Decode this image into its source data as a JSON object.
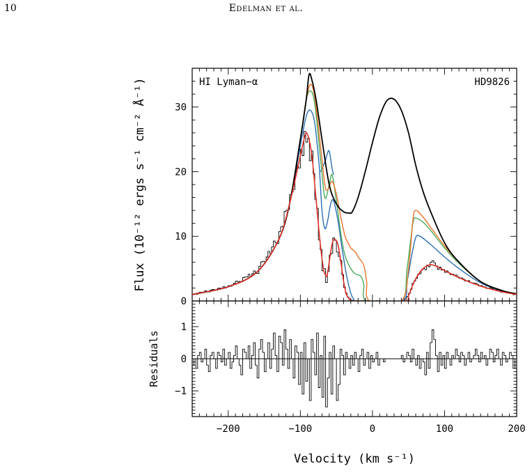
{
  "header": {
    "page_number": "10",
    "running_head": "Edelman et al."
  },
  "chart_data": [
    {
      "panel": "flux",
      "type": "line",
      "xlim": [
        -250,
        200
      ],
      "ylim": [
        0,
        36
      ],
      "x_ticks": [
        -200,
        -100,
        0,
        100,
        200
      ],
      "y_ticks": [
        0,
        10,
        20,
        30
      ],
      "y_tick_labels": [
        "0",
        "10",
        "20",
        "30"
      ],
      "ylabel": "Flux (10⁻¹² ergs s⁻¹ cm⁻² Å⁻¹)",
      "annotations": {
        "left": "HI Lyman−α",
        "right": "HD9826"
      },
      "colors": {
        "intrinsic": "#000000",
        "model_a": "#e8742a",
        "model_b": "#4aaa5a",
        "model_c": "#2a6fb5",
        "best_fit": "#e0322a",
        "data": "#000000"
      },
      "series": [
        {
          "key": "intrinsic",
          "x": [
            -250,
            -200,
            -160,
            -130,
            -115,
            -100,
            -92,
            -88,
            -84,
            -78,
            -70,
            -60,
            -50,
            -40,
            -32,
            -28,
            -20,
            -10,
            0,
            10,
            20,
            30,
            40,
            50,
            60,
            70,
            80,
            100,
            120,
            150,
            180,
            200
          ],
          "values": [
            1.0,
            2.2,
            4.5,
            9.5,
            15,
            25,
            31,
            35,
            34.2,
            31,
            25,
            18,
            15,
            13.8,
            13.6,
            13.8,
            16,
            20,
            24.5,
            28.5,
            31,
            31.2,
            29.5,
            26,
            21,
            17,
            14,
            9,
            6,
            3,
            1.6,
            1.1
          ]
        },
        {
          "key": "model_a",
          "x": [
            -250,
            -200,
            -160,
            -130,
            -115,
            -100,
            -92,
            -86,
            -80,
            -72,
            -66,
            -62,
            -56,
            -50,
            -44,
            -38,
            -34,
            -30,
            -26,
            -22,
            -20,
            -12,
            -8,
            -4,
            40,
            50,
            56,
            60,
            70,
            80,
            100,
            120,
            150,
            180,
            200
          ],
          "values": [
            1.0,
            2.2,
            4.5,
            9.5,
            15,
            25,
            31,
            33.5,
            31.5,
            24,
            18,
            17.2,
            18.5,
            16.5,
            13,
            10,
            9.0,
            8.2,
            7.8,
            7.3,
            6.8,
            5.5,
            3.0,
            0,
            0,
            5,
            12.5,
            14,
            13,
            11.5,
            8.5,
            6,
            3,
            1.6,
            1.1
          ]
        },
        {
          "key": "model_b",
          "x": [
            -250,
            -200,
            -160,
            -130,
            -115,
            -100,
            -92,
            -86,
            -80,
            -72,
            -66,
            -60,
            -56,
            -50,
            -44,
            -38,
            -30,
            -24,
            -16,
            -12,
            -8,
            40,
            48,
            56,
            60,
            70,
            80,
            100,
            120,
            150,
            180,
            200
          ],
          "values": [
            1.0,
            2.2,
            4.5,
            9.5,
            15,
            25,
            31,
            32.5,
            30.5,
            22,
            16,
            18,
            19.5,
            15.5,
            10.5,
            7,
            5,
            4.2,
            3.8,
            2.5,
            0,
            0,
            5,
            12,
            12.8,
            12.2,
            11,
            8.2,
            5.8,
            3,
            1.6,
            1.1
          ]
        },
        {
          "key": "model_c",
          "x": [
            -250,
            -200,
            -160,
            -130,
            -115,
            -100,
            -92,
            -86,
            -80,
            -74,
            -70,
            -66,
            -62,
            -58,
            -54,
            -48,
            -42,
            -36,
            -30,
            -26,
            -22,
            40,
            48,
            54,
            60,
            66,
            80,
            100,
            120,
            150,
            180,
            200
          ],
          "values": [
            1.0,
            2.2,
            4.5,
            9.5,
            15,
            24,
            28.5,
            29.5,
            27.5,
            21,
            14,
            11.2,
            12.5,
            15,
            15.5,
            12.5,
            8,
            4,
            1.2,
            0.3,
            0,
            0,
            3,
            6.8,
            9.8,
            10,
            8.8,
            6.8,
            5,
            2.8,
            1.5,
            1.1
          ]
        },
        {
          "key": "model_top_peak",
          "x": [
            -72,
            -66,
            -62,
            -60,
            -58,
            -56,
            -54
          ],
          "values": [
            20,
            21.5,
            23,
            23.2,
            22,
            20.5,
            19.5
          ]
        },
        {
          "key": "best_fit",
          "x": [
            -250,
            -200,
            -160,
            -130,
            -115,
            -100,
            -96,
            -92,
            -88,
            -84,
            -80,
            -76,
            -72,
            -68,
            -64,
            -62,
            -58,
            -55,
            -52,
            -48,
            -44,
            -40,
            -36,
            -32,
            -28,
            -22,
            44,
            50,
            56,
            62,
            70,
            80,
            90,
            100,
            120,
            150,
            180,
            200
          ],
          "values": [
            1.0,
            2.2,
            4.5,
            9.5,
            15,
            22.5,
            24.5,
            26,
            25,
            22.5,
            18,
            13,
            8.5,
            5,
            3.8,
            4.5,
            7.5,
            9.2,
            9.5,
            8.8,
            6.2,
            3,
            1.0,
            0.3,
            0,
            0,
            0,
            0.8,
            2.5,
            3.8,
            5.0,
            5.6,
            5.3,
            4.7,
            3.6,
            2.3,
            1.4,
            1.0
          ]
        }
      ]
    },
    {
      "panel": "residuals",
      "type": "line",
      "xlim": [
        -250,
        200
      ],
      "ylim": [
        -1.8,
        1.8
      ],
      "x_ticks": [
        -200,
        -100,
        0,
        100,
        200
      ],
      "x_tick_labels": [
        "−200",
        "−100",
        "0",
        "100",
        "200"
      ],
      "y_ticks": [
        -1,
        0,
        1
      ],
      "y_tick_labels": [
        "−1",
        "0",
        "1"
      ],
      "xlabel": "Velocity (km s⁻¹)",
      "ylabel": "Residuals",
      "x_start": -250,
      "x_step": 2.5,
      "values": [
        -0.2,
        0.0,
        -0.3,
        0.1,
        0.2,
        -0.1,
        0.0,
        0.3,
        -0.2,
        -0.4,
        0.1,
        0.2,
        0.0,
        -0.3,
        0.2,
        0.1,
        -0.1,
        0.3,
        -0.2,
        0.0,
        0.2,
        -0.3,
        -0.1,
        0.1,
        0.4,
        0.0,
        -0.2,
        -0.5,
        0.3,
        0.2,
        0.0,
        0.4,
        -0.3,
        0.1,
        0.5,
        -0.2,
        -0.6,
        0.3,
        0.6,
        0.2,
        -0.4,
        0.0,
        0.5,
        -0.3,
        0.3,
        0.8,
        0.1,
        -0.4,
        0.7,
        0.5,
        -0.2,
        0.9,
        0.3,
        -0.3,
        0.6,
        0.0,
        -0.6,
        0.4,
        0.2,
        -0.8,
        0.2,
        -1.1,
        0.5,
        -0.7,
        0.0,
        -1.3,
        0.6,
        0.2,
        -0.5,
        0.8,
        -0.9,
        0.1,
        -1.2,
        0.7,
        -1.5,
        -0.6,
        0.2,
        -1.1,
        0.4,
        0.0,
        -1.3,
        -0.8,
        0.3,
        0.1,
        -0.5,
        0.2,
        0.0,
        -0.3,
        0.1,
        -0.2,
        0.2,
        0.0,
        -0.4,
        0.1,
        0.3,
        -0.2,
        0.0,
        0.2,
        -0.3,
        0.1,
        -0.1,
        0.0,
        0.2,
        -0.2,
        0.0,
        0.0,
        -0.1,
        0.0,
        0.0,
        0.0,
        0.0,
        0.0,
        0.0,
        0.0,
        0.0,
        0.0,
        0.1,
        -0.1,
        0.0,
        0.2,
        0.1,
        -0.1,
        0.3,
        0.0,
        -0.2,
        0.1,
        -0.3,
        0.0,
        -0.1,
        -0.5,
        0.2,
        -0.3,
        0.5,
        0.9,
        0.6,
        0.1,
        -0.4,
        0.2,
        -0.2,
        0.1,
        -0.3,
        0.2,
        0.0,
        -0.2,
        0.1,
        0.0,
        0.3,
        0.1,
        -0.1,
        0.2,
        0.1,
        -0.2,
        0.0,
        0.2,
        -0.1,
        0.0,
        0.1,
        0.3,
        0.1,
        -0.1,
        0.2,
        0.0,
        0.1,
        -0.2,
        0.0,
        0.3,
        0.2,
        -0.1,
        0.1,
        0.3,
        0.0,
        -0.2,
        0.2,
        0.1,
        -0.1,
        0.0,
        0.2,
        0.1,
        -0.3,
        0.0,
        0.2,
        -0.1,
        0.1,
        0.0
      ]
    }
  ]
}
